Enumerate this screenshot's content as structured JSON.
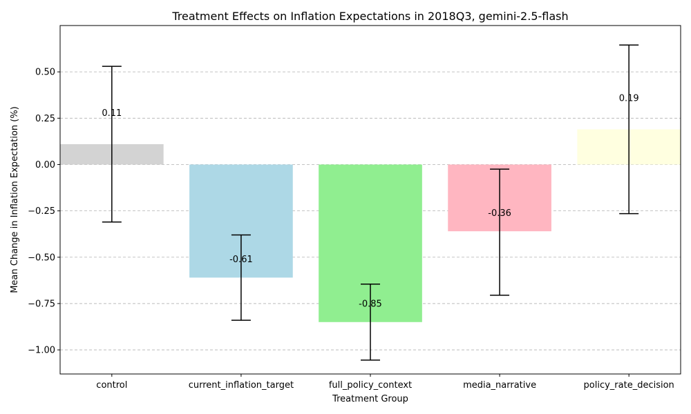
{
  "chart_data": {
    "type": "bar",
    "title": "Treatment Effects on Inflation Expectations in 2018Q3, gemini-2.5-flash",
    "xlabel": "Treatment Group",
    "ylabel": "Mean Change in Inflation Expectation (%)",
    "categories": [
      "control",
      "current_inflation_target",
      "full_policy_context",
      "media_narrative",
      "policy_rate_decision"
    ],
    "values": [
      0.11,
      -0.61,
      -0.85,
      -0.36,
      0.19
    ],
    "value_labels": [
      "0.11",
      "-0.61",
      "-0.85",
      "-0.36",
      "0.19"
    ],
    "error_low": [
      -0.31,
      -0.84,
      -1.055,
      -0.705,
      -0.265
    ],
    "error_high": [
      0.53,
      -0.38,
      -0.645,
      -0.025,
      0.645
    ],
    "colors": [
      "#d3d3d3",
      "#add8e6",
      "#90ee90",
      "#ffb6c1",
      "#ffffe0"
    ],
    "ylim": [
      -1.13,
      0.75
    ],
    "yticks": [
      -1.0,
      -0.75,
      -0.5,
      -0.25,
      0.0,
      0.25,
      0.5
    ],
    "ytick_labels": [
      "−1.00",
      "−0.75",
      "−0.50",
      "−0.25",
      "0.00",
      "0.25",
      "0.50"
    ],
    "grid": "y-dashed",
    "legend": "none"
  }
}
